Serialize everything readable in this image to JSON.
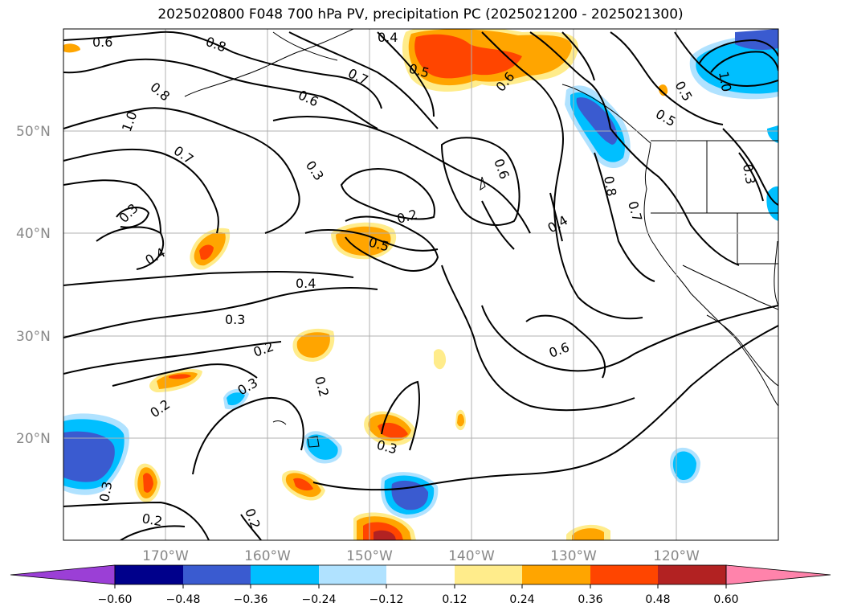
{
  "title": "2025020800 F048 700 hPa PV, precipitation PC (2025021200 - 2025021300)",
  "map": {
    "lat_ticks": [
      "50°N",
      "40°N",
      "30°N",
      "20°N"
    ],
    "lon_ticks": [
      "170°W",
      "160°W",
      "150°W",
      "140°W",
      "130°W",
      "120°W"
    ],
    "contour_labels": [
      "0.6",
      "0.8",
      "0.4",
      "0.5",
      "0.7",
      "0.6",
      "0.8",
      "1.0",
      "0.7",
      "0.3",
      "0.3",
      "0.2",
      "0.5",
      "0.6",
      "0.4",
      "0.4",
      "0.3",
      "0.2",
      "0.2",
      "0.3",
      "0.2",
      "0.3",
      "0.2",
      "0.3",
      "0.6",
      "0.6",
      "0.7",
      "0.8",
      "0.5",
      "0.5",
      "0.3",
      "1.0",
      "0.4",
      "0.2"
    ],
    "colors": {
      "land_line": "#000000",
      "grid": "#b0b0b0",
      "contour": "#000000"
    }
  },
  "colorbar": {
    "ticks": [
      "−0.60",
      "−0.48",
      "−0.36",
      "−0.24",
      "−0.12",
      "0.12",
      "0.24",
      "0.36",
      "0.48",
      "0.60"
    ],
    "colors": [
      "#9b3fd6",
      "#00008b",
      "#3a5bd0",
      "#00bfff",
      "#b0e2ff",
      "#ffffff",
      "#ffec8b",
      "#ffa500",
      "#ff4500",
      "#b22222",
      "#ff83ab"
    ]
  }
}
